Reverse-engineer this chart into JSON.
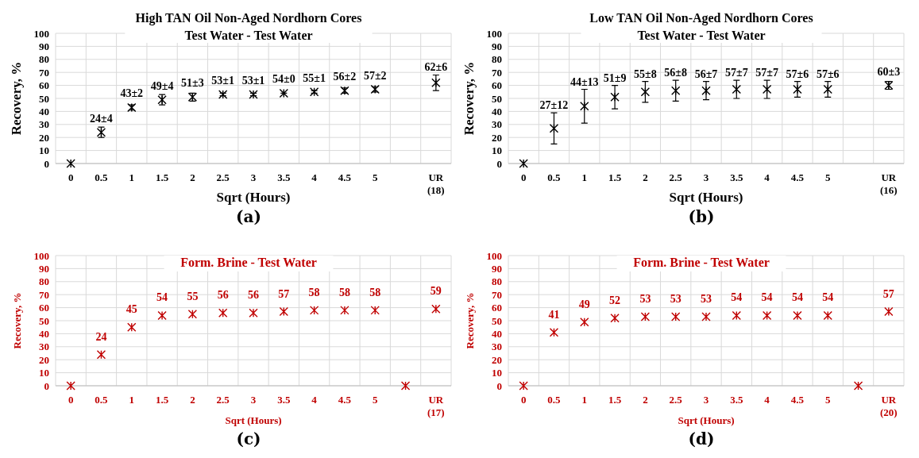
{
  "chart_data": [
    {
      "type": "scatter",
      "title": "High TAN Oil Non-Aged Nordhorn Cores",
      "subtitle": "Test Water - Test Water",
      "xlabel": "Sqrt (Hours)",
      "ylabel": "Recovery, %",
      "categories": [
        "0",
        "0.5",
        "1",
        "1.5",
        "2",
        "2.5",
        "3",
        "3.5",
        "4",
        "4.5",
        "5",
        null,
        "UR\n(18)"
      ],
      "series": [
        {
          "color": "#000000",
          "values": [
            0,
            24,
            43,
            49,
            51,
            53,
            53,
            54,
            55,
            56,
            57,
            null,
            62
          ],
          "errors": [
            null,
            4,
            2,
            4,
            3,
            1,
            1,
            0,
            1,
            2,
            2,
            null,
            6
          ],
          "value_labels": [
            null,
            "24±4",
            "43±2",
            "49±4",
            "51±3",
            "53±1",
            "53±1",
            "54±0",
            "55±1",
            "56±2",
            "57±2",
            null,
            "62±6"
          ]
        }
      ],
      "ylim": [
        0,
        100
      ],
      "yticks": [
        0,
        10,
        20,
        30,
        40,
        50,
        60,
        70,
        80,
        90,
        100
      ],
      "grid": true,
      "marker": "cross",
      "annotations": [
        "(a)"
      ]
    },
    {
      "type": "scatter",
      "title": "Low TAN Oil Non-Aged Nordhorn Cores",
      "subtitle": "Test Water - Test Water",
      "xlabel": "Sqrt (Hours)",
      "ylabel": "Recovery, %",
      "categories": [
        "0",
        "0.5",
        "1",
        "1.5",
        "2",
        "2.5",
        "3",
        "3.5",
        "4",
        "4.5",
        "5",
        null,
        "UR\n(16)"
      ],
      "series": [
        {
          "color": "#000000",
          "values": [
            0,
            27,
            44,
            51,
            55,
            56,
            56,
            57,
            57,
            57,
            57,
            null,
            60
          ],
          "errors": [
            null,
            12,
            13,
            9,
            8,
            8,
            7,
            7,
            7,
            6,
            6,
            null,
            3
          ],
          "value_labels": [
            null,
            "27±12",
            "44±13",
            "51±9",
            "55±8",
            "56±8",
            "56±7",
            "57±7",
            "57±7",
            "57±6",
            "57±6",
            null,
            "60±3"
          ]
        }
      ],
      "ylim": [
        0,
        100
      ],
      "yticks": [
        0,
        10,
        20,
        30,
        40,
        50,
        60,
        70,
        80,
        90,
        100
      ],
      "grid": true,
      "marker": "cross",
      "annotations": [
        "(b)"
      ]
    },
    {
      "type": "scatter",
      "title": "Form. Brine - Test Water",
      "xlabel": "Sqrt (Hours)",
      "ylabel": "Recovery, %",
      "categories": [
        "0",
        "0.5",
        "1",
        "1.5",
        "2",
        "2.5",
        "3",
        "3.5",
        "4",
        "4.5",
        "5",
        null,
        "UR\n(17)"
      ],
      "series": [
        {
          "color": "#c00000",
          "values": [
            0,
            24,
            45,
            54,
            55,
            56,
            56,
            57,
            58,
            58,
            58,
            0,
            59
          ],
          "value_labels": [
            null,
            "24",
            "45",
            "54",
            "55",
            "56",
            "56",
            "57",
            "58",
            "58",
            "58",
            null,
            "59"
          ]
        }
      ],
      "ylim": [
        0,
        100
      ],
      "yticks": [
        0,
        10,
        20,
        30,
        40,
        50,
        60,
        70,
        80,
        90,
        100
      ],
      "grid": true,
      "marker": "cross",
      "annotations": [
        "(c)"
      ]
    },
    {
      "type": "scatter",
      "title": "Form. Brine - Test Water",
      "xlabel": "Sqrt (Hours)",
      "ylabel": "Recovery, %",
      "categories": [
        "0",
        "0.5",
        "1",
        "1.5",
        "2",
        "2.5",
        "3",
        "3.5",
        "4",
        "4.5",
        "5",
        null,
        "UR\n(20)"
      ],
      "series": [
        {
          "color": "#c00000",
          "values": [
            0,
            41,
            49,
            52,
            53,
            53,
            53,
            54,
            54,
            54,
            54,
            0,
            57
          ],
          "value_labels": [
            null,
            "41",
            "49",
            "52",
            "53",
            "53",
            "53",
            "54",
            "54",
            "54",
            "54",
            null,
            "57"
          ]
        }
      ],
      "ylim": [
        0,
        100
      ],
      "yticks": [
        0,
        10,
        20,
        30,
        40,
        50,
        60,
        70,
        80,
        90,
        100
      ],
      "grid": true,
      "marker": "cross",
      "annotations": [
        "(d)"
      ]
    }
  ]
}
